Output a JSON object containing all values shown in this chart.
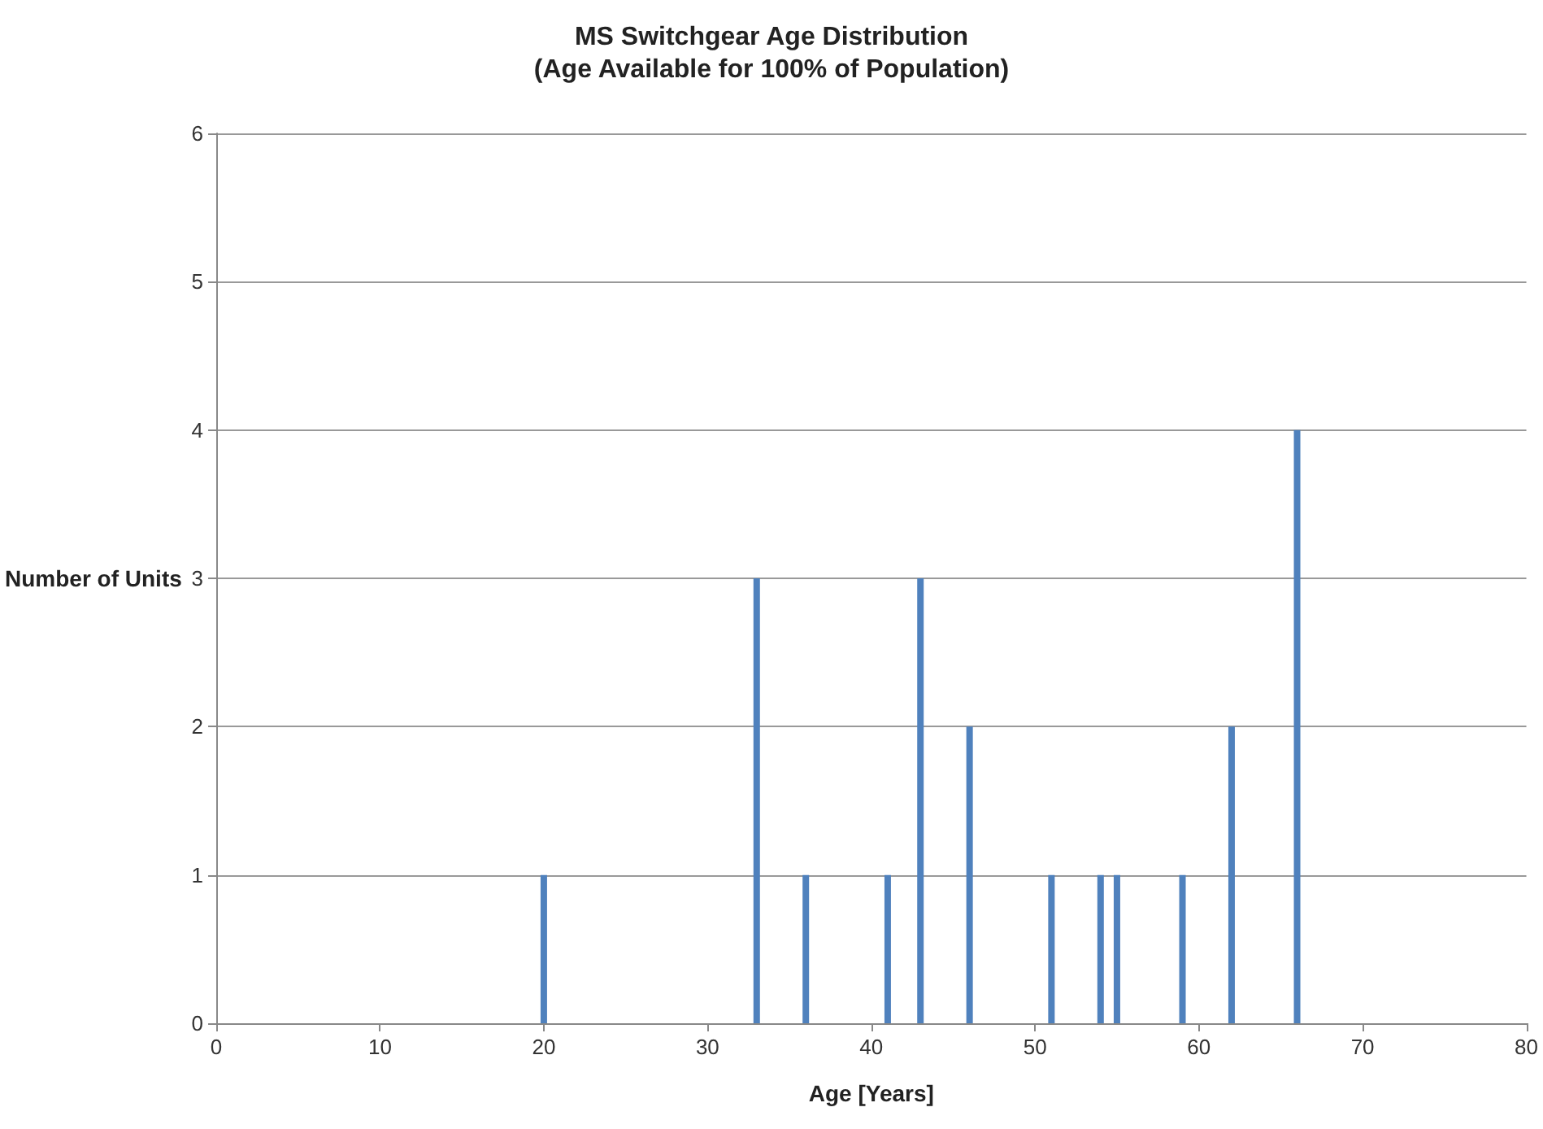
{
  "chart_data": {
    "type": "bar",
    "title": "MS Switchgear Age Distribution",
    "subtitle": "(Age Available for 100% of Population)",
    "xlabel": "Age [Years]",
    "ylabel": "Number of Units",
    "x": [
      20,
      33,
      36,
      41,
      43,
      46,
      51,
      54,
      55,
      59,
      62,
      66
    ],
    "values": [
      1,
      3,
      1,
      1,
      3,
      2,
      1,
      1,
      1,
      1,
      2,
      4
    ],
    "color": "#4f81bd",
    "xlim": [
      0,
      80
    ],
    "xticks": [
      0,
      10,
      20,
      30,
      40,
      50,
      60,
      70,
      80
    ],
    "ylim": [
      0,
      6
    ],
    "yticks": [
      0,
      1,
      2,
      3,
      4,
      5,
      6
    ],
    "grid": "y"
  }
}
